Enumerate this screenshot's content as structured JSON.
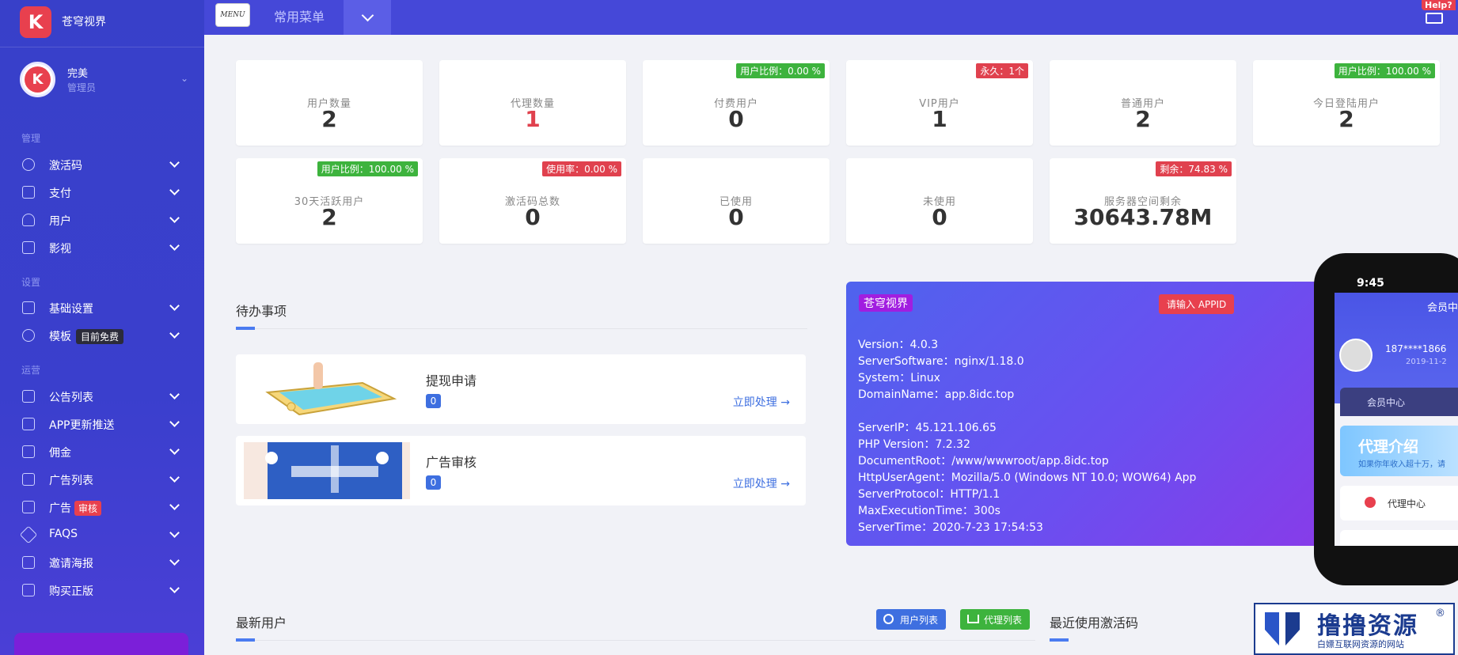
{
  "sidebar": {
    "logo_letter": "K",
    "brand": "苍穹视界",
    "user": {
      "avatar_letter": "K",
      "name": "完美",
      "role": "管理员"
    },
    "sections": {
      "manage": "管理",
      "settings": "设置",
      "ops": "运营"
    },
    "items": [
      {
        "label": "激活码"
      },
      {
        "label": "支付"
      },
      {
        "label": "用户"
      },
      {
        "label": "影视"
      },
      {
        "label": "基础设置"
      },
      {
        "label": "模板",
        "tag": "目前免费"
      },
      {
        "label": "公告列表"
      },
      {
        "label": "APP更新推送"
      },
      {
        "label": "佣金"
      },
      {
        "label": "广告列表"
      },
      {
        "label": "广告",
        "tag": "审核"
      },
      {
        "label": "FAQS"
      },
      {
        "label": "邀请海报"
      },
      {
        "label": "购买正版"
      }
    ]
  },
  "topbar": {
    "menu_icon_text": "MENU",
    "common_menu": "常用菜单",
    "help": "Help?"
  },
  "stats": [
    {
      "label": "用户数量",
      "value": "2"
    },
    {
      "label": "代理数量",
      "value": "1"
    },
    {
      "label": "付费用户",
      "value": "0",
      "badge": "用户比例：0.00 %"
    },
    {
      "label": "VIP用户",
      "value": "1",
      "badge": "永久：1个"
    },
    {
      "label": "普通用户",
      "value": "2"
    },
    {
      "label": "今日登陆用户",
      "value": "2",
      "badge": "用户比例：100.00 %"
    },
    {
      "label": "30天活跃用户",
      "value": "2",
      "badge": "用户比例：100.00 %"
    },
    {
      "label": "激活码总数",
      "value": "0",
      "badge": "使用率：0.00 %"
    },
    {
      "label": "已使用",
      "value": "0"
    },
    {
      "label": "未使用",
      "value": "0"
    },
    {
      "label": "服务器空间剩余",
      "value": "30643.78M",
      "badge": "剩余：74.83 %"
    }
  ],
  "colors": {
    "green": "#3db33d",
    "red": "#e0414e",
    "accent": "#4a7bf0"
  },
  "todo": {
    "title": "待办事项",
    "items": [
      {
        "title": "提现申请",
        "count": "0",
        "action": "立即处理 →"
      },
      {
        "title": "广告审核",
        "count": "0",
        "action": "立即处理 →"
      }
    ]
  },
  "server": {
    "brand": "苍穹视界",
    "button": "请输入 APPID",
    "lines": [
      "Version：4.0.3",
      "ServerSoftware：nginx/1.18.0",
      "System：Linux",
      "DomainName：app.8idc.top",
      "ServerIP：45.121.106.65",
      "PHP Version：7.2.32",
      "DocumentRoot：/www/wwwroot/app.8idc.top",
      "HttpUserAgent：Mozilla/5.0 (Windows NT 10.0; WOW64) App",
      "ServerProtocol：HTTP/1.1",
      "MaxExecutionTime：300s",
      "ServerTime：2020-7-23 17:54:53"
    ]
  },
  "phone": {
    "time": "9:45",
    "title": "会员中",
    "user": "187****1866",
    "date": "2019-11-2",
    "member": "会员中心",
    "agent_title": "代理介绍",
    "agent_sub": "如果你年收入超十万，请",
    "row": "代理中心"
  },
  "bottom": {
    "latest_users": "最新用户",
    "user_list_btn": "用户列表",
    "agent_list_btn": "代理列表",
    "recent_codes": "最近使用激活码"
  },
  "watermark": {
    "title": "撸撸资源",
    "reg": "®",
    "sub": "白嫖互联网资源的网站"
  }
}
